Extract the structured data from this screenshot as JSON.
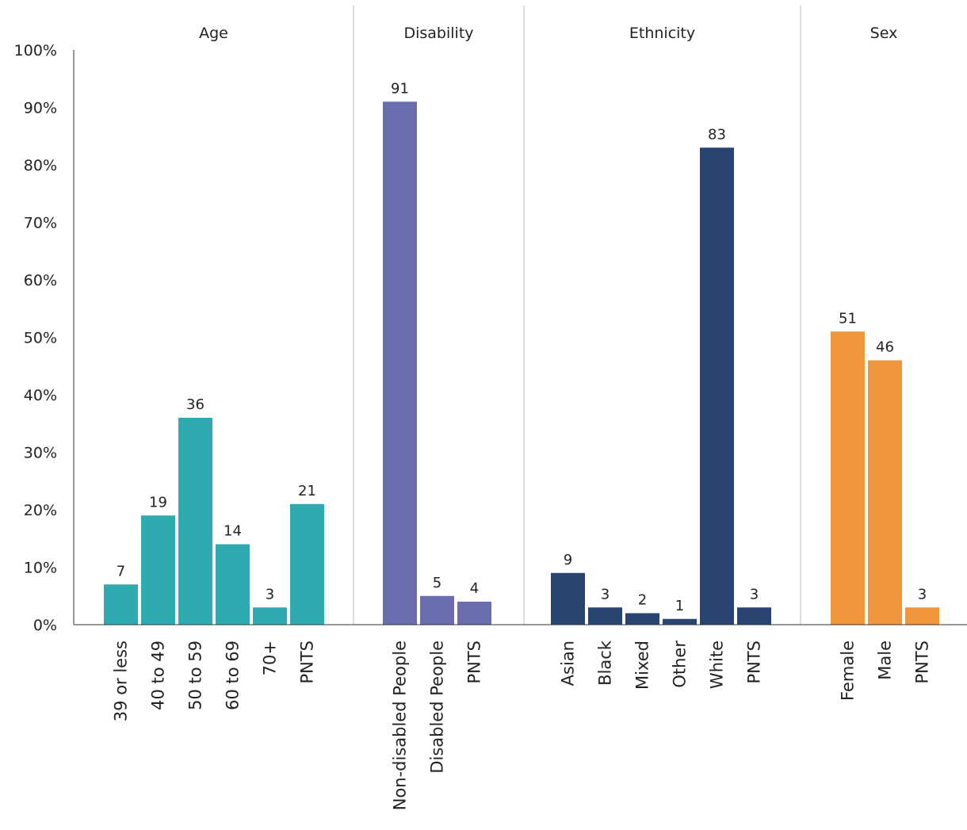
{
  "chart_data": {
    "type": "bar",
    "y_unit": "%",
    "ylim": [
      0,
      100
    ],
    "yticks": [
      0,
      10,
      20,
      30,
      40,
      50,
      60,
      70,
      80,
      90,
      100
    ],
    "ytick_labels": [
      "0%",
      "10%",
      "20%",
      "30%",
      "40%",
      "50%",
      "60%",
      "70%",
      "80%",
      "90%",
      "100%"
    ],
    "grid": false,
    "legend": "none",
    "groups": [
      {
        "name": "Age",
        "color": "#2eaab0",
        "categories": [
          "39 or less",
          "40 to 49",
          "50 to 59",
          "60 to 69",
          "70+",
          "PNTS"
        ],
        "values": [
          7,
          19,
          36,
          14,
          3,
          21
        ]
      },
      {
        "name": "Disability",
        "color": "#6b6eae",
        "categories": [
          "Non-disabled People",
          "Disabled People",
          "PNTS"
        ],
        "values": [
          91,
          5,
          4
        ]
      },
      {
        "name": "Ethnicity",
        "color": "#2a4472",
        "categories": [
          "Asian",
          "Black",
          "Mixed",
          "Other",
          "White",
          "PNTS"
        ],
        "values": [
          9,
          3,
          2,
          1,
          83,
          3
        ]
      },
      {
        "name": "Sex",
        "color": "#f0963c",
        "categories": [
          "Female",
          "Male",
          "PNTS"
        ],
        "values": [
          51,
          46,
          3
        ]
      }
    ]
  }
}
